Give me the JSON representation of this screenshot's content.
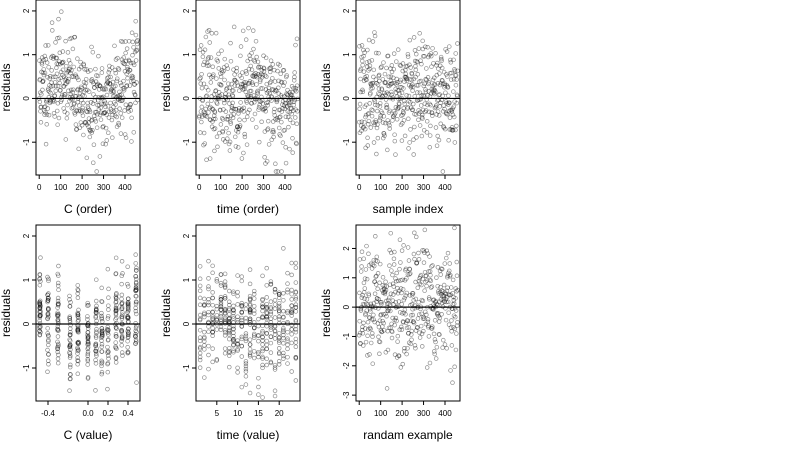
{
  "style": {
    "point_color": "#000000",
    "point_opacity": 0.45,
    "background": "#ffffff"
  },
  "chart_data": [
    {
      "type": "scatter",
      "xlabel": "C (order)",
      "ylabel": "residuals",
      "xlim": [
        -15,
        470
      ],
      "ylim": [
        -1.75,
        2.25
      ],
      "xticks": [
        0,
        100,
        200,
        300,
        400
      ],
      "xtick_labels": [
        "0",
        "100",
        "200",
        "300",
        "400"
      ],
      "yticks": [
        -1,
        0,
        1,
        2
      ],
      "ytick_labels": [
        "-1",
        "0",
        "1",
        "2"
      ],
      "refline_y": 0,
      "n_points": 460,
      "seed": 11,
      "pattern": "c_order"
    },
    {
      "type": "scatter",
      "xlabel": "time (order)",
      "ylabel": "residuals",
      "xlim": [
        -15,
        470
      ],
      "ylim": [
        -1.75,
        2.25
      ],
      "xticks": [
        0,
        100,
        200,
        300,
        400
      ],
      "xtick_labels": [
        "0",
        "100",
        "200",
        "300",
        "400"
      ],
      "yticks": [
        -1,
        0,
        1,
        2
      ],
      "ytick_labels": [
        "-1",
        "0",
        "1",
        "2"
      ],
      "refline_y": 0,
      "n_points": 460,
      "seed": 23,
      "pattern": "time_order"
    },
    {
      "type": "scatter",
      "xlabel": "sample index",
      "ylabel": "residuals",
      "xlim": [
        -15,
        470
      ],
      "ylim": [
        -1.75,
        2.25
      ],
      "xticks": [
        0,
        100,
        200,
        300,
        400
      ],
      "xtick_labels": [
        "0",
        "100",
        "200",
        "300",
        "400"
      ],
      "yticks": [
        -1,
        0,
        1,
        2
      ],
      "ytick_labels": [
        "-1",
        "0",
        "1",
        "2"
      ],
      "refline_y": 0,
      "n_points": 460,
      "seed": 37,
      "pattern": "sample_index"
    },
    {
      "type": "scatter",
      "xlabel": "C (value)",
      "ylabel": "residuals",
      "xlim": [
        -0.52,
        0.52
      ],
      "ylim": [
        -1.75,
        2.25
      ],
      "xticks": [
        -0.4,
        0.0,
        0.2,
        0.4
      ],
      "xtick_labels": [
        "-0.4",
        "0.0",
        "0.2",
        "0.4"
      ],
      "yticks": [
        -1,
        0,
        1,
        2
      ],
      "ytick_labels": [
        "-1",
        "0",
        "1",
        "2"
      ],
      "refline_y": 0,
      "n_points": 460,
      "seed": 41,
      "pattern": "c_value",
      "x_levels": [
        -0.48,
        -0.4,
        -0.3,
        -0.18,
        -0.1,
        0.0,
        0.08,
        0.14,
        0.2,
        0.28,
        0.34,
        0.4,
        0.48
      ]
    },
    {
      "type": "scatter",
      "xlabel": "time (value)",
      "ylabel": "residuals",
      "xlim": [
        0,
        25
      ],
      "ylim": [
        -1.75,
        2.25
      ],
      "xticks": [
        5,
        10,
        15,
        20
      ],
      "xtick_labels": [
        "5",
        "10",
        "15",
        "20"
      ],
      "yticks": [
        -1,
        0,
        1,
        2
      ],
      "ytick_labels": [
        "-1",
        "0",
        "1",
        "2"
      ],
      "refline_y": 0,
      "n_points": 460,
      "seed": 53,
      "pattern": "time_value",
      "x_levels": [
        1,
        2,
        3,
        4,
        5,
        6,
        7,
        8,
        9,
        10,
        11,
        12,
        13,
        14,
        15,
        16,
        17,
        18,
        19,
        20,
        21,
        22,
        23,
        24
      ]
    },
    {
      "type": "scatter",
      "xlabel": "randam example",
      "ylabel": "residuals",
      "xlim": [
        -15,
        470
      ],
      "ylim": [
        -3.2,
        2.8
      ],
      "xticks": [
        0,
        100,
        200,
        300,
        400
      ],
      "xtick_labels": [
        "0",
        "100",
        "200",
        "300",
        "400"
      ],
      "yticks": [
        -3,
        -2,
        -1,
        0,
        1,
        2
      ],
      "ytick_labels": [
        "-3",
        "-2",
        "-1",
        "0",
        "1",
        "2"
      ],
      "refline_y": 0,
      "n_points": 460,
      "seed": 67,
      "pattern": "random"
    }
  ]
}
